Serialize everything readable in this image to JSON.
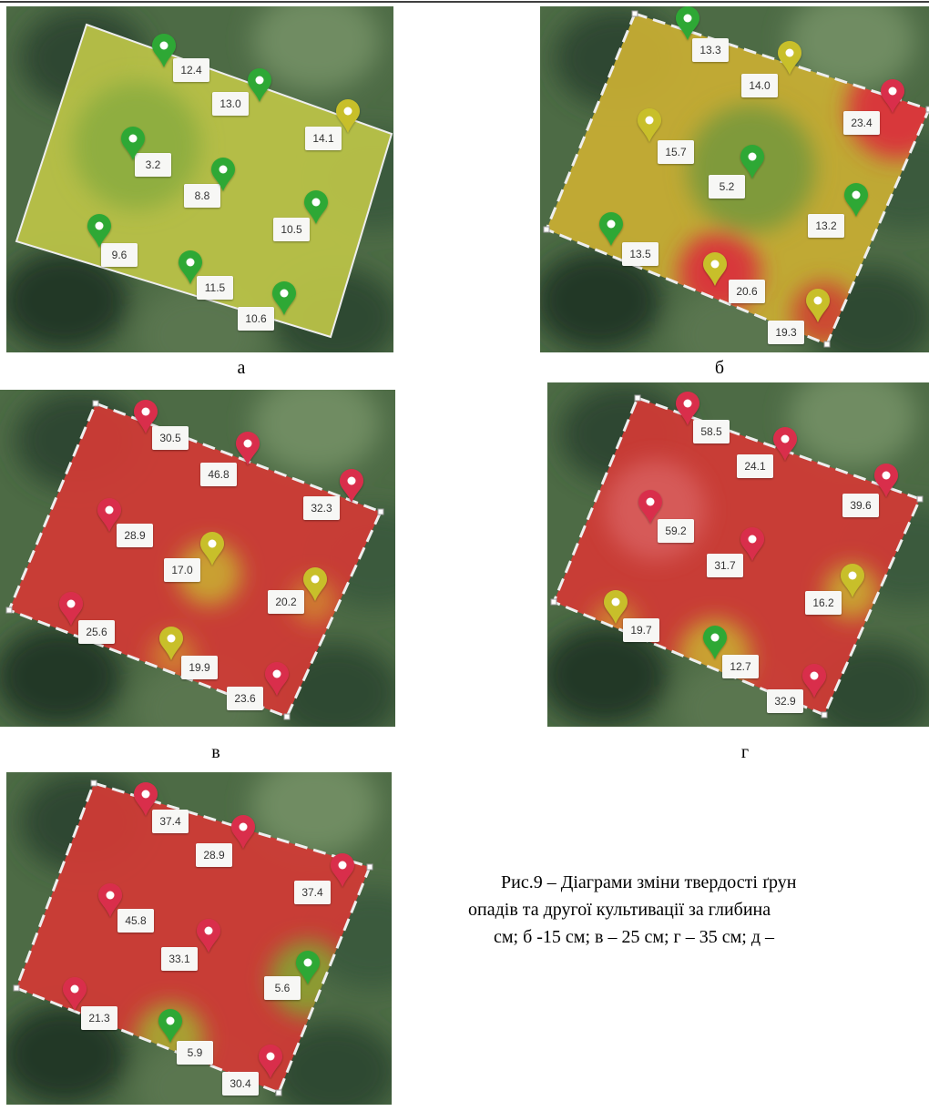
{
  "panels": [
    {
      "label": "а",
      "pins": [
        {
          "value": "12.4",
          "color": "green"
        },
        {
          "value": "13.0",
          "color": "green"
        },
        {
          "value": "14.1",
          "color": "yellow"
        },
        {
          "value": "3.2",
          "color": "green"
        },
        {
          "value": "8.8",
          "color": "green"
        },
        {
          "value": "10.5",
          "color": "green"
        },
        {
          "value": "9.6",
          "color": "green"
        },
        {
          "value": "11.5",
          "color": "green"
        },
        {
          "value": "10.6",
          "color": "green"
        }
      ]
    },
    {
      "label": "б",
      "pins": [
        {
          "value": "13.3",
          "color": "green"
        },
        {
          "value": "14.0",
          "color": "yellow"
        },
        {
          "value": "23.4",
          "color": "red"
        },
        {
          "value": "15.7",
          "color": "yellow"
        },
        {
          "value": "5.2",
          "color": "green"
        },
        {
          "value": "13.2",
          "color": "green"
        },
        {
          "value": "13.5",
          "color": "green"
        },
        {
          "value": "20.6",
          "color": "yellow"
        },
        {
          "value": "19.3",
          "color": "yellow"
        }
      ]
    },
    {
      "label": "в",
      "pins": [
        {
          "value": "30.5",
          "color": "red"
        },
        {
          "value": "46.8",
          "color": "red"
        },
        {
          "value": "32.3",
          "color": "red"
        },
        {
          "value": "28.9",
          "color": "red"
        },
        {
          "value": "17.0",
          "color": "yellow"
        },
        {
          "value": "20.2",
          "color": "yellow"
        },
        {
          "value": "25.6",
          "color": "red"
        },
        {
          "value": "19.9",
          "color": "yellow"
        },
        {
          "value": "23.6",
          "color": "red"
        }
      ]
    },
    {
      "label": "г",
      "pins": [
        {
          "value": "58.5",
          "color": "red"
        },
        {
          "value": "24.1",
          "color": "red"
        },
        {
          "value": "39.6",
          "color": "red"
        },
        {
          "value": "59.2",
          "color": "red"
        },
        {
          "value": "31.7",
          "color": "red"
        },
        {
          "value": "16.2",
          "color": "yellow"
        },
        {
          "value": "19.7",
          "color": "yellow"
        },
        {
          "value": "12.7",
          "color": "green"
        },
        {
          "value": "32.9",
          "color": "red"
        }
      ]
    },
    {
      "pins": [
        {
          "value": "37.4",
          "color": "red"
        },
        {
          "value": "28.9",
          "color": "red"
        },
        {
          "value": "37.4",
          "color": "red"
        },
        {
          "value": "45.8",
          "color": "red"
        },
        {
          "value": "33.1",
          "color": "red"
        },
        {
          "value": "5.6",
          "color": "green"
        },
        {
          "value": "21.3",
          "color": "red"
        },
        {
          "value": "5.9",
          "color": "green"
        },
        {
          "value": "30.4",
          "color": "red"
        }
      ]
    }
  ],
  "caption": [
    "Рис.9 – Діаграми зміни твердості ґрун",
    "опадів та другої культивації за глибина",
    "см; б -15 см; в – 25 см; г – 35 см; д –"
  ]
}
